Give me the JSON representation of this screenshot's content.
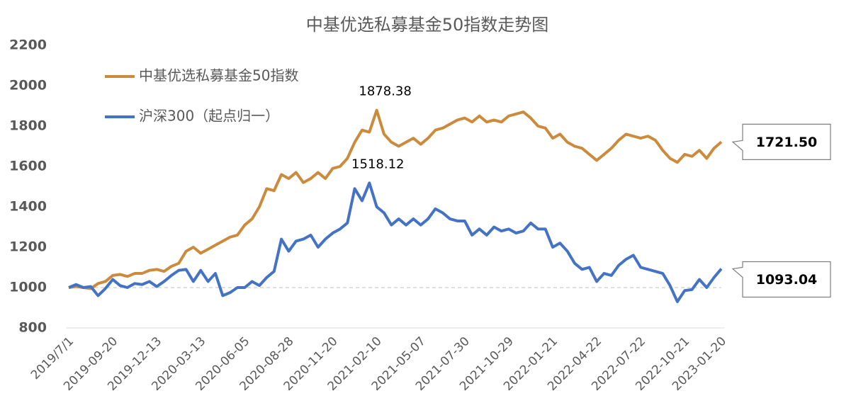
{
  "chart_data": {
    "type": "line",
    "title": "中基优选私募基金50指数走势图",
    "categories": [
      "2019/7/1",
      null,
      null,
      null,
      null,
      null,
      "2019-09-20",
      null,
      null,
      null,
      null,
      null,
      "2019-12-13",
      null,
      null,
      null,
      null,
      null,
      "2020-03-13",
      null,
      null,
      null,
      null,
      null,
      "2020-06-05",
      null,
      null,
      null,
      null,
      null,
      "2020-08-28",
      null,
      null,
      null,
      null,
      null,
      "2020-11-20",
      null,
      null,
      null,
      null,
      null,
      "2021-02-10",
      null,
      null,
      null,
      null,
      null,
      "2021-05-07",
      null,
      null,
      null,
      null,
      null,
      "2021-07-30",
      null,
      null,
      null,
      null,
      null,
      "2021-10-29",
      null,
      null,
      null,
      null,
      null,
      "2022-01-21",
      null,
      null,
      null,
      null,
      null,
      "2022-04-22",
      null,
      null,
      null,
      null,
      null,
      "2022-07-22",
      null,
      null,
      null,
      null,
      null,
      "2022-10-21",
      null,
      null,
      null,
      null,
      "2023-01-20"
    ],
    "series": [
      {
        "name": "中基优选私募基金50指数",
        "color": "#cc8a3c",
        "values": [
          1000,
          1005,
          1000,
          995,
          1020,
          1030,
          1060,
          1065,
          1055,
          1070,
          1070,
          1085,
          1090,
          1080,
          1105,
          1120,
          1180,
          1200,
          1170,
          1190,
          1210,
          1230,
          1250,
          1260,
          1310,
          1340,
          1400,
          1490,
          1480,
          1560,
          1540,
          1570,
          1520,
          1540,
          1570,
          1540,
          1590,
          1600,
          1640,
          1720,
          1780,
          1770,
          1878.38,
          1760,
          1720,
          1700,
          1720,
          1740,
          1710,
          1740,
          1780,
          1790,
          1810,
          1830,
          1840,
          1820,
          1850,
          1820,
          1830,
          1820,
          1850,
          1860,
          1870,
          1840,
          1800,
          1790,
          1740,
          1760,
          1720,
          1700,
          1690,
          1660,
          1630,
          1660,
          1690,
          1730,
          1760,
          1750,
          1740,
          1750,
          1730,
          1680,
          1640,
          1620,
          1660,
          1650,
          1680,
          1640,
          1690,
          1721.5
        ],
        "value_labels": [
          null,
          null,
          null,
          null,
          null,
          null,
          null,
          null,
          null,
          null,
          null,
          null,
          null,
          null,
          null,
          null,
          null,
          null,
          null,
          null,
          null,
          null,
          null,
          null,
          null,
          null,
          null,
          null,
          null,
          null,
          null,
          null,
          null,
          null,
          null,
          null,
          null,
          null,
          null,
          null,
          null,
          null,
          "1878.38",
          null,
          null,
          null,
          null,
          null,
          null,
          null,
          null,
          null,
          null,
          null,
          null,
          null,
          null,
          null,
          null,
          null,
          null,
          null,
          null,
          null,
          null,
          null,
          null,
          null,
          null,
          null,
          null,
          null,
          null,
          null,
          null,
          null,
          null,
          null,
          null,
          null,
          null,
          null,
          null,
          null,
          null,
          null,
          null,
          null,
          null,
          "1721.50"
        ]
      },
      {
        "name": "沪深300（起点归一）",
        "color": "#4472c4",
        "values": [
          1000,
          1015,
          1000,
          1005,
          960,
          995,
          1040,
          1010,
          1000,
          1020,
          1015,
          1030,
          1005,
          1030,
          1060,
          1085,
          1090,
          1030,
          1085,
          1030,
          1070,
          960,
          975,
          1000,
          1000,
          1030,
          1010,
          1050,
          1080,
          1240,
          1180,
          1230,
          1240,
          1260,
          1200,
          1240,
          1270,
          1290,
          1320,
          1490,
          1430,
          1518.12,
          1400,
          1370,
          1310,
          1340,
          1310,
          1340,
          1310,
          1340,
          1390,
          1370,
          1340,
          1330,
          1330,
          1260,
          1290,
          1260,
          1300,
          1280,
          1290,
          1270,
          1280,
          1320,
          1290,
          1290,
          1200,
          1220,
          1180,
          1120,
          1090,
          1100,
          1030,
          1070,
          1060,
          1110,
          1140,
          1160,
          1100,
          1090,
          1080,
          1070,
          1010,
          930,
          985,
          990,
          1040,
          1000,
          1050,
          1093.04
        ],
        "value_labels": [
          null,
          null,
          null,
          null,
          null,
          null,
          null,
          null,
          null,
          null,
          null,
          null,
          null,
          null,
          null,
          null,
          null,
          null,
          null,
          null,
          null,
          null,
          null,
          null,
          null,
          null,
          null,
          null,
          null,
          null,
          null,
          null,
          null,
          null,
          null,
          null,
          null,
          null,
          null,
          null,
          null,
          "1518.12",
          null,
          null,
          null,
          null,
          null,
          null,
          null,
          null,
          null,
          null,
          null,
          null,
          null,
          null,
          null,
          null,
          null,
          null,
          null,
          null,
          null,
          null,
          null,
          null,
          null,
          null,
          null,
          null,
          null,
          null,
          null,
          null,
          null,
          null,
          null,
          null,
          null,
          null,
          null,
          null,
          null,
          null,
          null,
          null,
          null,
          null,
          null,
          "1093.04"
        ]
      }
    ],
    "ylim": [
      800,
      2200
    ],
    "yticks": [
      800,
      1000,
      1200,
      1400,
      1600,
      1800,
      2000,
      2200
    ],
    "reference_line": 1000,
    "grid": false,
    "legend": "upper left"
  }
}
